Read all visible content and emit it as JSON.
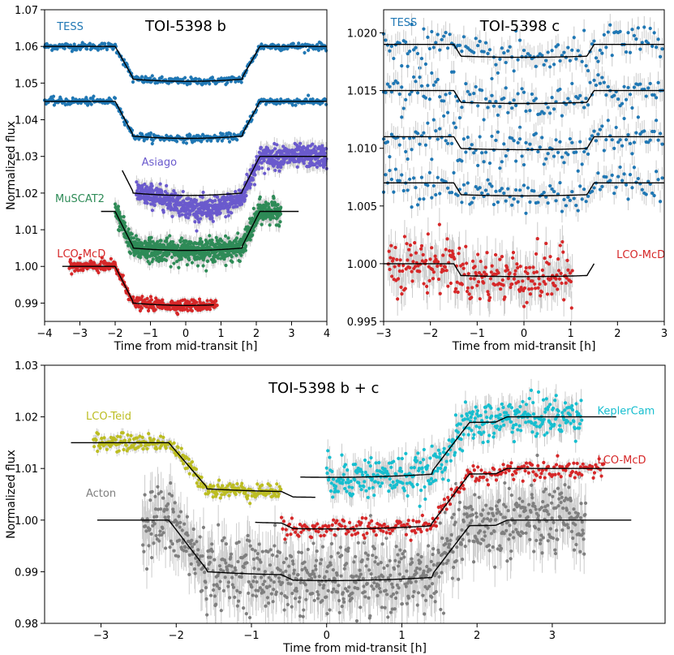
{
  "figure": {
    "panels": [
      "TOI-5398 b",
      "TOI-5398 c",
      "TOI-5398 b + c"
    ]
  },
  "chart_data": [
    {
      "type": "scatter",
      "title": "TOI-5398 b",
      "xlabel": "Time from mid-transit [h]",
      "ylabel": "Normalized flux",
      "xlim": [
        -4,
        4
      ],
      "ylim": [
        0.985,
        1.07
      ],
      "xticks": [
        -4,
        -3,
        -2,
        -1,
        0,
        1,
        2,
        3,
        4
      ],
      "yticks": [
        0.99,
        1.0,
        1.01,
        1.02,
        1.03,
        1.04,
        1.05,
        1.06,
        1.07
      ],
      "grid": false,
      "series": [
        {
          "name": "TESS",
          "color": "#1f77b4",
          "x_range": [
            -4,
            4
          ],
          "baseline": 1.06,
          "depth": 0.0085,
          "t14": 4.1,
          "tingress": 0.5,
          "scatter": 0.0005
        },
        {
          "name": "",
          "color": "#1f77b4",
          "x_range": [
            -4,
            4
          ],
          "baseline": 1.045,
          "depth": 0.009,
          "t14": 4.1,
          "tingress": 0.5,
          "scatter": 0.0005
        },
        {
          "name": "Asiago",
          "color": "#6a5acd",
          "x_range": [
            -1.4,
            4
          ],
          "model_range": [
            -1.8,
            4
          ],
          "baseline": 1.03,
          "depth": 0.0095,
          "t14": 4.1,
          "tingress": 0.5,
          "scatter": 0.0015
        },
        {
          "name": "MuSCAT2",
          "color": "#2e8b57",
          "x_range": [
            -2.0,
            2.7
          ],
          "model_range": [
            -2.4,
            3.2
          ],
          "baseline": 1.015,
          "depth": 0.0095,
          "t14": 4.1,
          "tingress": 0.5,
          "scatter": 0.0015
        },
        {
          "name": "LCO-McD",
          "color": "#d62728",
          "x_range": [
            -3.3,
            0.9
          ],
          "model_range": [
            -3.5,
            0.8
          ],
          "baseline": 1.0,
          "depth": 0.0095,
          "t14": 4.1,
          "tingress": 0.5,
          "scatter": 0.0008
        }
      ]
    },
    {
      "type": "scatter",
      "title": "TOI-5398 c",
      "xlabel": "Time from mid-transit [h]",
      "ylabel": "",
      "xlim": [
        -3,
        3
      ],
      "ylim": [
        0.995,
        1.022
      ],
      "xticks": [
        -3,
        -2,
        -1,
        0,
        1,
        2,
        3
      ],
      "yticks": [
        0.995,
        1.0,
        1.005,
        1.01,
        1.015,
        1.02
      ],
      "grid": false,
      "series": [
        {
          "name": "TESS",
          "color": "#1f77b4",
          "x_range": [
            -3,
            3
          ],
          "baseline": 1.019,
          "depth": 0.001,
          "t14": 3.0,
          "tingress": 0.15,
          "scatter": 0.0008
        },
        {
          "name": "",
          "color": "#1f77b4",
          "x_range": [
            -3,
            3
          ],
          "baseline": 1.015,
          "depth": 0.001,
          "t14": 3.0,
          "tingress": 0.15,
          "scatter": 0.0008
        },
        {
          "name": "",
          "color": "#1f77b4",
          "x_range": [
            -3,
            3
          ],
          "baseline": 1.011,
          "depth": 0.001,
          "t14": 3.0,
          "tingress": 0.15,
          "scatter": 0.0008
        },
        {
          "name": "",
          "color": "#1f77b4",
          "x_range": [
            -3,
            3
          ],
          "baseline": 1.007,
          "depth": 0.001,
          "t14": 3.0,
          "tingress": 0.15,
          "scatter": 0.0008
        },
        {
          "name": "LCO-McD",
          "color": "#d62728",
          "x_range": [
            -2.9,
            1.05
          ],
          "model_range": [
            -3,
            1.5
          ],
          "baseline": 1.0,
          "depth": 0.001,
          "t14": 3.0,
          "tingress": 0.15,
          "scatter": 0.0012
        }
      ]
    },
    {
      "type": "scatter",
      "title": "TOI-5398 b + c",
      "xlabel": "Time from mid-transit [h]",
      "ylabel": "Normalized flux",
      "xlim": [
        -3.75,
        4.5
      ],
      "ylim": [
        0.98,
        1.03
      ],
      "xticks": [
        -3,
        -2,
        -1,
        0,
        1,
        2,
        3
      ],
      "yticks": [
        0.98,
        0.99,
        1.0,
        1.01,
        1.02,
        1.03
      ],
      "grid": false,
      "series": [
        {
          "name": "LCO-Teid",
          "color": "#bcbd22",
          "x_range": [
            -3.1,
            -0.6
          ],
          "model_range": [
            -3.4,
            -0.15
          ],
          "baseline": 1.015,
          "depth_b": 0.0085,
          "depth_c": 0.001,
          "scatter": 0.0008
        },
        {
          "name": "Acton",
          "color": "#7f7f7f",
          "x_range": [
            -2.45,
            3.45
          ],
          "model_range": [
            -3.05,
            4.05
          ],
          "baseline": 1.0,
          "depth_b": 0.0095,
          "depth_c": 0.001,
          "scatter": 0.0035
        },
        {
          "name": "LCO-McD",
          "color": "#d62728",
          "x_range": [
            -0.6,
            3.7
          ],
          "model_range": [
            -0.95,
            4.05
          ],
          "baseline": 1.01,
          "depth_b": 0.0095,
          "depth_c": 0.001,
          "scatter": 0.0009
        },
        {
          "name": "KeplerCam",
          "color": "#17becf",
          "x_range": [
            0.0,
            3.4
          ],
          "model_range": [
            -0.35,
            3.85
          ],
          "baseline": 1.02,
          "depth_b": 0.0095,
          "depth_c": 0.001,
          "scatter": 0.002
        }
      ]
    }
  ]
}
